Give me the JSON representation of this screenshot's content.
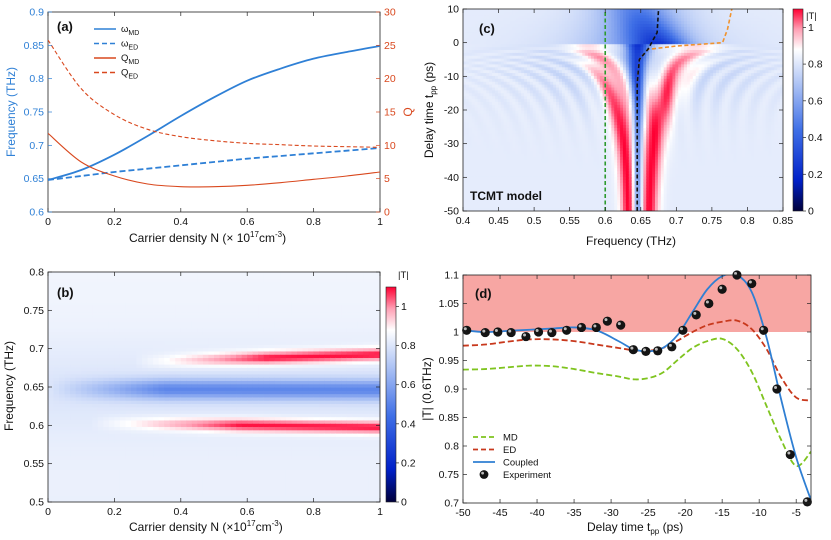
{
  "chart_data": [
    {
      "panel": "(a)",
      "type": "line",
      "xlabel": "Carrier density N (× 10",
      "xlabel_sup": "17",
      "xlabel_tail": "cm",
      "xlabel_tail_sup": "-3",
      "xlabel_end": ")",
      "ylabel_left": "Frequency (THz)",
      "ylabel_right": "Q",
      "xlim": [
        0,
        1
      ],
      "ylim_left": [
        0.6,
        0.9
      ],
      "ylim_right": [
        0,
        30
      ],
      "x_ticks": [
        0,
        0.2,
        0.4,
        0.6,
        0.8,
        1
      ],
      "x_tick_labels": [
        "0",
        "0.2",
        "0.4",
        "0.6",
        "0.8",
        "1"
      ],
      "y_left_ticks": [
        0.6,
        0.65,
        0.7,
        0.75,
        0.8,
        0.85,
        0.9
      ],
      "y_left_tick_labels": [
        "0.6",
        "0.65",
        "0.7",
        "0.75",
        "0.8",
        "0.85",
        "0.9"
      ],
      "y_right_ticks": [
        0,
        5,
        10,
        15,
        20,
        25,
        30
      ],
      "y_right_tick_labels": [
        "0",
        "5",
        "10",
        "15",
        "20",
        "25",
        "30"
      ],
      "colors": {
        "frequency": "#2f80d6",
        "q": "#d9481e"
      },
      "x": [
        0,
        0.1,
        0.2,
        0.3,
        0.4,
        0.5,
        0.6,
        0.7,
        0.8,
        0.9,
        1.0
      ],
      "series": [
        {
          "name": "ω",
          "sub": "MD",
          "axis": "left",
          "style": "solid",
          "values": [
            0.648,
            0.663,
            0.686,
            0.714,
            0.744,
            0.772,
            0.797,
            0.815,
            0.83,
            0.84,
            0.849
          ]
        },
        {
          "name": "ω",
          "sub": "ED",
          "axis": "left",
          "style": "dashed",
          "values": [
            0.648,
            0.654,
            0.66,
            0.665,
            0.67,
            0.675,
            0.68,
            0.684,
            0.688,
            0.692,
            0.696
          ]
        },
        {
          "name": "Q",
          "sub": "MD",
          "axis": "right",
          "style": "solid",
          "values": [
            11.8,
            7.5,
            5.4,
            4.2,
            3.8,
            3.8,
            4.0,
            4.4,
            4.9,
            5.4,
            6.0
          ]
        },
        {
          "name": "Q",
          "sub": "ED",
          "axis": "right",
          "style": "dashed",
          "values": [
            25.8,
            18.5,
            14.6,
            12.4,
            11.3,
            10.7,
            10.3,
            10.1,
            9.9,
            9.8,
            9.7
          ]
        }
      ]
    },
    {
      "panel": "(b)",
      "type": "heatmap",
      "xlabel": "Carrier density N (×10",
      "xlabel_sup": "17",
      "xlabel_tail": "cm",
      "xlabel_tail_sup": "-3",
      "xlabel_end": ")",
      "ylabel": "Frequency (THz)",
      "colorbar_label": "|T|",
      "xlim": [
        0,
        1
      ],
      "ylim": [
        0.5,
        0.8
      ],
      "x_ticks": [
        0,
        0.2,
        0.4,
        0.6,
        0.8,
        1
      ],
      "x_tick_labels": [
        "0",
        "0.2",
        "0.4",
        "0.6",
        "0.8",
        "1"
      ],
      "y_ticks": [
        0.5,
        0.55,
        0.6,
        0.65,
        0.7,
        0.75,
        0.8
      ],
      "y_tick_labels": [
        "0.5",
        "0.55",
        "0.6",
        "0.65",
        "0.7",
        "0.75",
        "0.8"
      ],
      "colorbar_ticks": [
        0,
        0.2,
        0.4,
        0.6,
        0.8,
        1
      ],
      "colorbar_tick_labels": [
        "0",
        "0.2",
        "0.4",
        "0.6",
        "0.8",
        "1"
      ],
      "colorbar_range": [
        0,
        1.1
      ],
      "features": [
        {
          "name": "upper peak",
          "onset_x": 0.28,
          "center_start": 0.68,
          "center_end": 0.693,
          "max": 1.1
        },
        {
          "name": "central dip",
          "center_start": 0.648,
          "center_end": 0.647,
          "min": 0.55
        },
        {
          "name": "lower peak",
          "onset_x": 0.15,
          "center_start": 0.605,
          "center_end": 0.598,
          "max": 1.1
        }
      ]
    },
    {
      "panel": "(c)",
      "type": "heatmap",
      "annotation": "TCMT model",
      "xlabel": "Frequency (THz)",
      "ylabel": "Delay time t",
      "ylabel_sub": "pp",
      "ylabel_end": " (ps)",
      "colorbar_label": "|T|",
      "xlim": [
        0.4,
        0.85
      ],
      "ylim": [
        -50,
        10
      ],
      "x_ticks": [
        0.4,
        0.45,
        0.5,
        0.55,
        0.6,
        0.65,
        0.7,
        0.75,
        0.8,
        0.85
      ],
      "x_tick_labels": [
        "0.4",
        "0.45",
        "0.5",
        "0.55",
        "0.6",
        "0.65",
        "0.7",
        "0.75",
        "0.8",
        "0.85"
      ],
      "y_ticks": [
        -50,
        -40,
        -30,
        -20,
        -10,
        0,
        10
      ],
      "y_tick_labels": [
        "-50",
        "-40",
        "-30",
        "-20",
        "-10",
        "0",
        "10"
      ],
      "colorbar_ticks": [
        0,
        0.2,
        0.4,
        0.6,
        0.8,
        1
      ],
      "colorbar_tick_labels": [
        "0",
        "0.2",
        "0.4",
        "0.6",
        "0.8",
        "1"
      ],
      "overlays": [
        {
          "name": "MD frequency",
          "color": "#2e9a2e",
          "points": [
            [
              0.6,
              -50
            ],
            [
              0.6,
              10
            ]
          ]
        },
        {
          "name": "ED frequency",
          "color": "#f0932e",
          "points": [
            [
              0.645,
              -50
            ],
            [
              0.645,
              -12
            ],
            [
              0.648,
              -5
            ],
            [
              0.66,
              -2
            ],
            [
              0.7,
              -1
            ],
            [
              0.765,
              0
            ],
            [
              0.772,
              4
            ],
            [
              0.778,
              10
            ]
          ]
        },
        {
          "name": "dip trajectory",
          "color": "#111111",
          "points": [
            [
              0.645,
              -50
            ],
            [
              0.645,
              -12
            ],
            [
              0.648,
              -5
            ],
            [
              0.66,
              -2
            ],
            [
              0.673,
              3
            ],
            [
              0.675,
              10
            ]
          ]
        }
      ]
    },
    {
      "panel": "(d)",
      "type": "line",
      "xlabel": "Delay time t",
      "xlabel_sub": "pp",
      "xlabel_end": " (ps)",
      "ylabel": "|T| (0.6THz)",
      "xlim": [
        -50,
        -3
      ],
      "ylim": [
        0.7,
        1.1
      ],
      "x_ticks": [
        -50,
        -45,
        -40,
        -35,
        -30,
        -25,
        -20,
        -15,
        -10,
        -5
      ],
      "x_tick_labels": [
        "-50",
        "-45",
        "-40",
        "-35",
        "-30",
        "-25",
        "-20",
        "-15",
        "-10",
        "-5"
      ],
      "y_ticks": [
        0.7,
        0.75,
        0.8,
        0.85,
        0.9,
        0.95,
        1,
        1.05,
        1.1
      ],
      "y_tick_labels": [
        "0.7",
        "0.75",
        "0.8",
        "0.85",
        "0.9",
        "0.95",
        "1",
        "1.05",
        "1.1"
      ],
      "shaded_region": {
        "y_from": 1.0,
        "y_to": 1.1,
        "color": "#f7a6a3"
      },
      "x": [
        -50,
        -47,
        -44,
        -41,
        -38,
        -35,
        -32,
        -29,
        -27,
        -25,
        -23,
        -21,
        -19,
        -17,
        -15,
        -13,
        -11,
        -9,
        -7,
        -5,
        -3
      ],
      "series": [
        {
          "name": "MD",
          "color": "#7fc41f",
          "style": "dashed",
          "values": [
            0.934,
            0.935,
            0.938,
            0.941,
            0.94,
            0.935,
            0.928,
            0.922,
            0.917,
            0.919,
            0.929,
            0.951,
            0.972,
            0.984,
            0.988,
            0.97,
            0.93,
            0.87,
            0.81,
            0.765,
            0.79
          ]
        },
        {
          "name": "ED",
          "color": "#c8381c",
          "style": "dashed",
          "values": [
            0.976,
            0.978,
            0.983,
            0.987,
            0.987,
            0.984,
            0.978,
            0.972,
            0.968,
            0.967,
            0.972,
            0.985,
            1.0,
            1.012,
            1.018,
            1.02,
            1.005,
            0.97,
            0.92,
            0.885,
            0.88
          ]
        },
        {
          "name": "Coupled",
          "color": "#2f7fd3",
          "style": "solid",
          "values": [
            1.003,
            1.0,
            1.002,
            1.004,
            1.006,
            1.008,
            1.003,
            0.984,
            0.97,
            0.966,
            0.972,
            0.995,
            1.035,
            1.075,
            1.098,
            1.1,
            1.07,
            0.99,
            0.88,
            0.78,
            0.705
          ]
        }
      ],
      "experiment": {
        "name": "Experiment",
        "x": [
          -49.5,
          -47,
          -45.3,
          -43.5,
          -41.5,
          -39.8,
          -38,
          -36,
          -34,
          -32,
          -30.5,
          -28.7,
          -27,
          -25.3,
          -23.7,
          -21.8,
          -20.3,
          -18.5,
          -16.8,
          -15,
          -13,
          -11,
          -9.4,
          -7.6,
          -5.8,
          -3.5
        ],
        "values": [
          1.003,
          0.999,
          1.0,
          0.999,
          0.992,
          1.0,
          0.999,
          1.003,
          1.008,
          1.008,
          1.019,
          1.012,
          0.969,
          0.966,
          0.967,
          0.974,
          1.003,
          1.03,
          1.05,
          1.075,
          1.1,
          1.085,
          1.003,
          0.9,
          0.785,
          0.702
        ]
      }
    }
  ]
}
